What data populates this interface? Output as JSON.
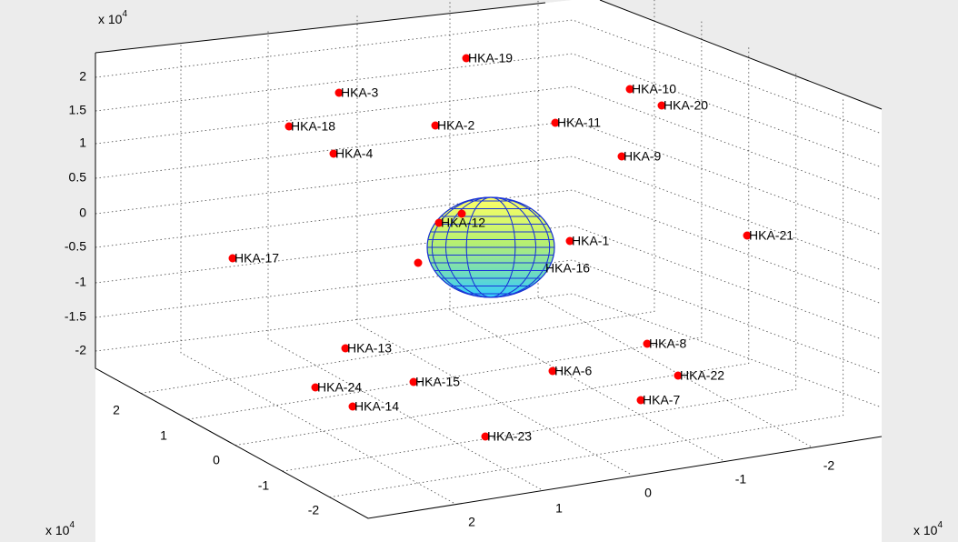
{
  "axes": {
    "z": {
      "multiplier": {
        "base": "x 10",
        "exponent": "4"
      },
      "ticks": [
        "2",
        "1.5",
        "1",
        "0.5",
        "0",
        "-0.5",
        "-1",
        "-1.5",
        "-2"
      ]
    },
    "y": {
      "multiplier": {
        "base": "x 10",
        "exponent": "4"
      },
      "ticks": [
        "2",
        "1",
        "0",
        "-1",
        "-2"
      ]
    },
    "x": {
      "multiplier": {
        "base": "x 10",
        "exponent": "4"
      },
      "ticks": [
        "2",
        "1",
        "0",
        "-1",
        "-2"
      ]
    }
  },
  "satellites": [
    "HKA-19",
    "HKA-10",
    "HKA-3",
    "HKA-20",
    "HKA-18",
    "HKA-2",
    "HKA-11",
    "HKA-4",
    "HKA-9",
    "HKA-12",
    "HKA-1",
    "HKA-21",
    "HKA-17",
    "HKA-16",
    "HKA-13",
    "HKA-8",
    "HKA-6",
    "HKA-22",
    "HKA-24",
    "HKA-15",
    "HKA-7",
    "HKA-14",
    "HKA-23"
  ]
}
